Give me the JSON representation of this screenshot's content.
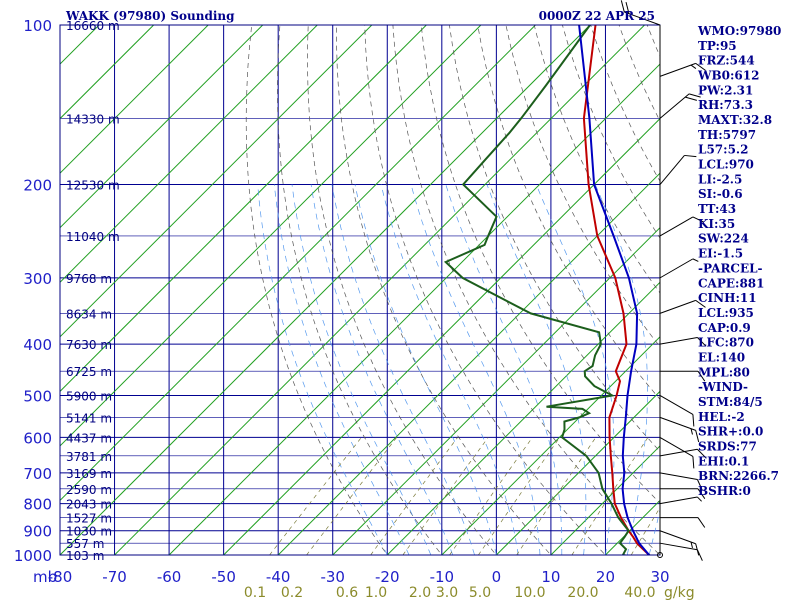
{
  "header": {
    "station": "WAKK (97980) Sounding",
    "time": "0000Z 22 APR 25"
  },
  "indices": [
    "WMO:97980",
    "TP:95",
    "FRZ:544",
    "WB0:612",
    "PW:2.31",
    "RH:73.3",
    "MAXT:32.8",
    "TH:5797",
    "L57:5.2",
    "LCL:970",
    "LI:-2.5",
    "SI:-0.6",
    "TT:43",
    "KI:35",
    "SW:224",
    "EI:-1.5",
    "-PARCEL-",
    "CAPE:881",
    "CINH:11",
    "LCL:935",
    "CAP:0.9",
    "LFC:870",
    "EL:140",
    "MPL:80",
    "-WIND-",
    "STM:84/5",
    "HEL:-2",
    "SHR+:0.0",
    "SRDS:77",
    "EHI:0.1",
    "BRN:2266.7",
    "BSHR:0"
  ],
  "chart_data": {
    "type": "line",
    "title": "WAKK (97980) Sounding",
    "subtitle": "0000Z 22 APR 25",
    "xlabel": "",
    "ylabel": "mb",
    "pressure_axis": {
      "scale": "log",
      "range": [
        1000,
        100
      ],
      "ticks": [
        "100",
        "200",
        "300",
        "400",
        "500",
        "600",
        "700",
        "800",
        "900",
        "1000"
      ]
    },
    "temperature_axis": {
      "range": [
        -80,
        30
      ],
      "unit": "C",
      "ticks": [
        "-80",
        "-70",
        "-60",
        "-50",
        "-40",
        "-30",
        "-20",
        "-10",
        "0",
        "10",
        "20",
        "30"
      ]
    },
    "mixing_ratio_labels": [
      "0.1",
      "0.2",
      "0.6",
      "1.0",
      "2.0",
      "3.0",
      "5.0",
      "10.0",
      "20.0",
      "40.0"
    ],
    "mixing_ratio_unit": "g/kg",
    "axis_corner_label": "mb",
    "height_labels": [
      {
        "p": 100,
        "text": "16660 m"
      },
      {
        "p": 150,
        "text": "14330 m"
      },
      {
        "p": 200,
        "text": "12530 m"
      },
      {
        "p": 250,
        "text": "11040 m"
      },
      {
        "p": 300,
        "text": "9768 m"
      },
      {
        "p": 350,
        "text": "8634 m"
      },
      {
        "p": 400,
        "text": "7630 m"
      },
      {
        "p": 450,
        "text": "6725 m"
      },
      {
        "p": 500,
        "text": "5900 m"
      },
      {
        "p": 550,
        "text": "5141 m"
      },
      {
        "p": 600,
        "text": "4437 m"
      },
      {
        "p": 650,
        "text": "3781 m"
      },
      {
        "p": 700,
        "text": "3169 m"
      },
      {
        "p": 750,
        "text": "2590 m"
      },
      {
        "p": 800,
        "text": "2043 m"
      },
      {
        "p": 850,
        "text": "1527 m"
      },
      {
        "p": 900,
        "text": "1030 m"
      },
      {
        "p": 950,
        "text": "557 m"
      },
      {
        "p": 1000,
        "text": "103 m"
      }
    ],
    "series": [
      {
        "name": "",
        "color": "#c00000",
        "points": [
          [
            1005,
            28.6
          ],
          [
            1000,
            28
          ],
          [
            950,
            23.6
          ],
          [
            925,
            21.8
          ],
          [
            900,
            19.8
          ],
          [
            850,
            16
          ],
          [
            800,
            12.3
          ],
          [
            750,
            9.3
          ],
          [
            700,
            6.2
          ],
          [
            650,
            2.8
          ],
          [
            600,
            -0.8
          ],
          [
            550,
            -4.5
          ],
          [
            500,
            -7.2
          ],
          [
            470,
            -9.2
          ],
          [
            450,
            -11.8
          ],
          [
            400,
            -14.8
          ],
          [
            350,
            -21
          ],
          [
            300,
            -29
          ],
          [
            250,
            -40
          ],
          [
            200,
            -51
          ],
          [
            150,
            -64
          ],
          [
            100,
            -79
          ]
        ]
      },
      {
        "name": "",
        "color": "#1c5e1c",
        "points": [
          [
            1005,
            24.6
          ],
          [
            1000,
            23.2
          ],
          [
            975,
            22.7
          ],
          [
            950,
            20.5
          ],
          [
            925,
            20.2
          ],
          [
            900,
            19.8
          ],
          [
            850,
            15.5
          ],
          [
            800,
            11.7
          ],
          [
            750,
            7.3
          ],
          [
            700,
            3.7
          ],
          [
            650,
            -1.7
          ],
          [
            600,
            -9.5
          ],
          [
            580,
            -10.5
          ],
          [
            560,
            -12
          ],
          [
            550,
            -10
          ],
          [
            540,
            -9
          ],
          [
            530,
            -11
          ],
          [
            525,
            -18
          ],
          [
            500,
            -8
          ],
          [
            480,
            -13
          ],
          [
            460,
            -16.5
          ],
          [
            450,
            -17.5
          ],
          [
            440,
            -17
          ],
          [
            420,
            -18.5
          ],
          [
            400,
            -19.5
          ],
          [
            380,
            -22
          ],
          [
            350,
            -38
          ],
          [
            300,
            -57
          ],
          [
            280,
            -63
          ],
          [
            260,
            -59
          ],
          [
            250,
            -60
          ],
          [
            230,
            -62
          ],
          [
            200,
            -74
          ],
          [
            180,
            -74.5
          ],
          [
            160,
            -75
          ],
          [
            150,
            -75.5
          ],
          [
            130,
            -77
          ],
          [
            100,
            -80
          ]
        ]
      },
      {
        "name": "",
        "color": "#0000c0",
        "points": [
          [
            1005,
            28.6
          ],
          [
            1000,
            28
          ],
          [
            950,
            24
          ],
          [
            900,
            20.6
          ],
          [
            850,
            17.2
          ],
          [
            800,
            14
          ],
          [
            750,
            11
          ],
          [
            700,
            8.4
          ],
          [
            650,
            5
          ],
          [
            600,
            1.8
          ],
          [
            550,
            -1.5
          ],
          [
            500,
            -5.2
          ],
          [
            450,
            -9
          ],
          [
            400,
            -13
          ],
          [
            350,
            -18.5
          ],
          [
            300,
            -26.5
          ],
          [
            250,
            -37
          ],
          [
            200,
            -50
          ],
          [
            150,
            -63
          ],
          [
            100,
            -82
          ]
        ]
      }
    ],
    "wind_barbs": [
      {
        "p": 1000,
        "dir": 0,
        "kt": 0
      },
      {
        "p": 950,
        "dir": 100,
        "kt": 10
      },
      {
        "p": 900,
        "dir": 110,
        "kt": 15
      },
      {
        "p": 850,
        "dir": 90,
        "kt": 10
      },
      {
        "p": 800,
        "dir": 80,
        "kt": 5
      },
      {
        "p": 750,
        "dir": 90,
        "kt": 10
      },
      {
        "p": 700,
        "dir": 100,
        "kt": 10
      },
      {
        "p": 650,
        "dir": 80,
        "kt": 10
      },
      {
        "p": 600,
        "dir": 120,
        "kt": 10
      },
      {
        "p": 550,
        "dir": 110,
        "kt": 15
      },
      {
        "p": 500,
        "dir": 120,
        "kt": 10
      },
      {
        "p": 450,
        "dir": 90,
        "kt": 10
      },
      {
        "p": 400,
        "dir": 80,
        "kt": 10
      },
      {
        "p": 350,
        "dir": 70,
        "kt": 10
      },
      {
        "p": 300,
        "dir": 60,
        "kt": 5
      },
      {
        "p": 250,
        "dir": 60,
        "kt": 10
      },
      {
        "p": 200,
        "dir": 40,
        "kt": 10
      },
      {
        "p": 150,
        "dir": 50,
        "kt": 20
      },
      {
        "p": 125,
        "dir": 70,
        "kt": 15
      },
      {
        "p": 100,
        "dir": 290,
        "kt": 20
      }
    ],
    "grid": true,
    "legend": "right"
  }
}
